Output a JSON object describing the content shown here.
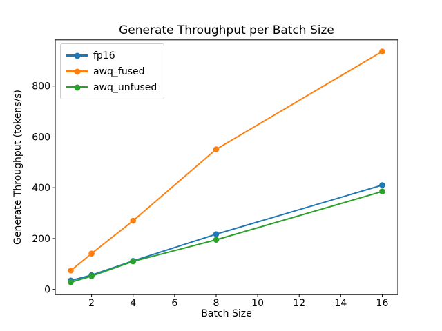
{
  "title": "Generate Throughput per Batch Size",
  "chart_data": {
    "type": "line",
    "title": "Generate Throughput per Batch Size",
    "xlabel": "Batch Size",
    "ylabel": "Generate Throughput (tokens/s)",
    "x": [
      1,
      2,
      4,
      8,
      16
    ],
    "series": [
      {
        "name": "fp16",
        "color": "#1f77b4",
        "values": [
          35,
          56,
          112,
          217,
          410
        ]
      },
      {
        "name": "awq_fused",
        "color": "#ff7f0e",
        "values": [
          74,
          141,
          270,
          551,
          936
        ]
      },
      {
        "name": "awq_unfused",
        "color": "#2ca02c",
        "values": [
          28,
          52,
          110,
          195,
          385
        ]
      }
    ],
    "xticks": [
      2,
      4,
      6,
      8,
      10,
      12,
      14,
      16
    ],
    "yticks": [
      0,
      200,
      400,
      600,
      800
    ],
    "xlim": [
      0.25,
      16.75
    ],
    "ylim": [
      -20.5,
      981.5
    ],
    "grid": false,
    "legend_position": "upper-left",
    "marker": "o",
    "line_width": 2,
    "marker_radius": 4.3,
    "spine_color": "#000000"
  }
}
